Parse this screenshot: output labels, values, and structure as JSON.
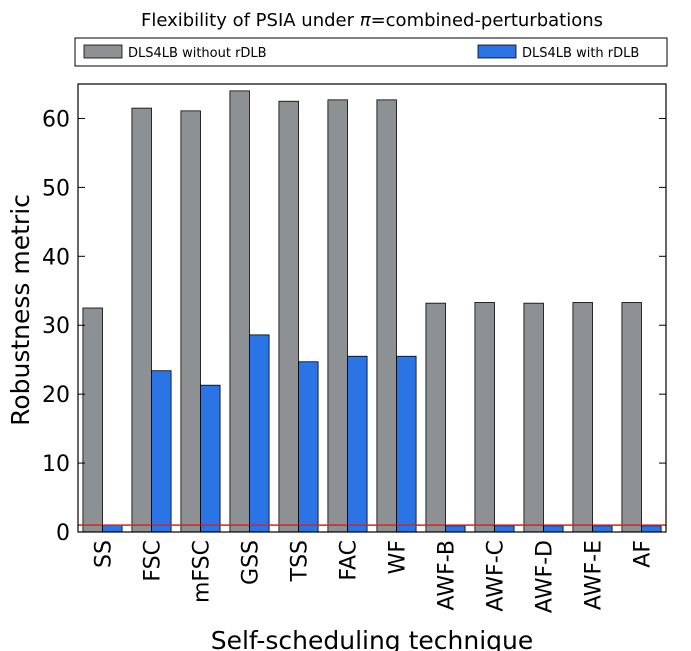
{
  "chart_data": {
    "type": "bar",
    "title_prefix": "Flexibility of PSIA under ",
    "title_symbol": "π",
    "title_suffix": "=combined-perturbations",
    "xlabel": "Self-scheduling technique",
    "ylabel": "Robustness metric",
    "categories": [
      "SS",
      "FSC",
      "mFSC",
      "GSS",
      "TSS",
      "FAC",
      "WF",
      "AWF-B",
      "AWF-C",
      "AWF-D",
      "AWF-E",
      "AF"
    ],
    "series": [
      {
        "name": "DLS4LB without rDLB",
        "color": "#8e9193",
        "values": [
          32.5,
          61.5,
          61.1,
          64.0,
          62.5,
          62.7,
          62.7,
          33.2,
          33.3,
          33.2,
          33.3,
          33.3
        ]
      },
      {
        "name": "DLS4LB with rDLB",
        "color": "#2a74e6",
        "values": [
          1.0,
          23.4,
          21.3,
          28.6,
          24.7,
          25.5,
          25.5,
          0.9,
          0.9,
          0.9,
          0.9,
          0.9
        ]
      }
    ],
    "ylim": [
      0,
      65
    ],
    "yticks": [
      0,
      10,
      20,
      30,
      40,
      50,
      60
    ],
    "reference_line": {
      "y": 1,
      "color": "#e0201b"
    },
    "legend_placement": "top",
    "grid": false
  }
}
